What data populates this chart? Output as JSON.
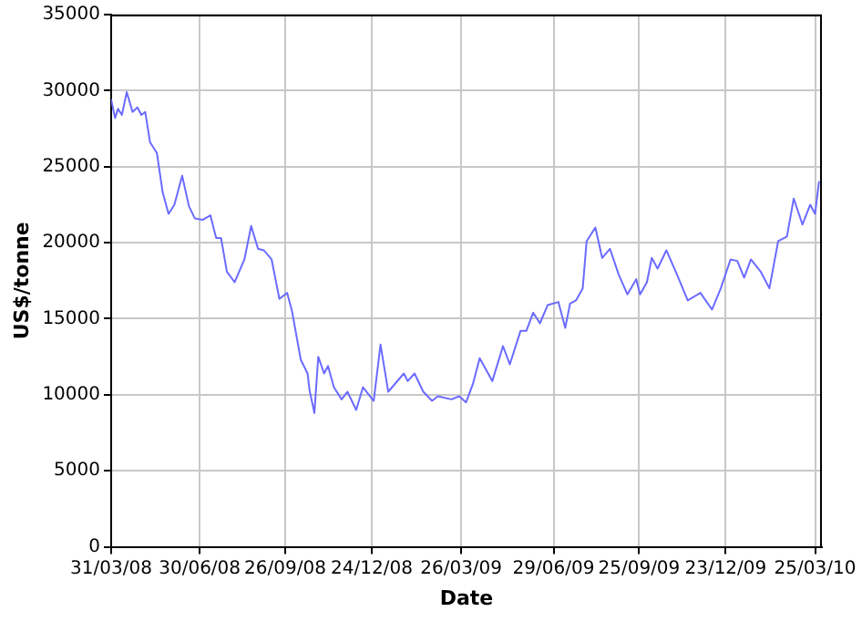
{
  "chart_data": {
    "type": "line",
    "xlabel": "Date",
    "ylabel": "US$/tonne",
    "x": [
      "2008-03-31",
      "2008-04-04",
      "2008-04-07",
      "2008-04-11",
      "2008-04-16",
      "2008-04-22",
      "2008-04-27",
      "2008-05-01",
      "2008-05-05",
      "2008-05-10",
      "2008-05-17",
      "2008-05-23",
      "2008-05-29",
      "2008-06-04",
      "2008-06-12",
      "2008-06-19",
      "2008-06-25",
      "2008-07-03",
      "2008-07-11",
      "2008-07-17",
      "2008-07-22",
      "2008-07-28",
      "2008-08-05",
      "2008-08-15",
      "2008-08-22",
      "2008-08-29",
      "2008-09-04",
      "2008-09-12",
      "2008-09-20",
      "2008-09-28",
      "2008-10-03",
      "2008-10-12",
      "2008-10-19",
      "2008-10-21",
      "2008-10-26",
      "2008-10-30",
      "2008-11-05",
      "2008-11-09",
      "2008-11-15",
      "2008-11-23",
      "2008-11-29",
      "2008-12-08",
      "2008-12-15",
      "2008-12-26",
      "2009-01-02",
      "2009-01-10",
      "2009-01-26",
      "2009-01-30",
      "2009-02-06",
      "2009-02-15",
      "2009-02-24",
      "2009-03-02",
      "2009-03-16",
      "2009-03-24",
      "2009-03-31",
      "2009-04-07",
      "2009-04-14",
      "2009-04-27",
      "2009-05-08",
      "2009-05-15",
      "2009-05-26",
      "2009-06-01",
      "2009-06-08",
      "2009-06-15",
      "2009-06-23",
      "2009-07-04",
      "2009-07-11",
      "2009-07-16",
      "2009-07-22",
      "2009-07-29",
      "2009-08-02",
      "2009-08-11",
      "2009-08-18",
      "2009-08-26",
      "2009-09-04",
      "2009-09-13",
      "2009-09-22",
      "2009-09-26",
      "2009-10-03",
      "2009-10-08",
      "2009-10-14",
      "2009-10-23",
      "2009-11-03",
      "2009-11-14",
      "2009-11-27",
      "2009-12-09",
      "2009-12-18",
      "2009-12-28",
      "2010-01-04",
      "2010-01-11",
      "2010-01-18",
      "2010-01-28",
      "2010-02-06",
      "2010-02-15",
      "2010-02-24",
      "2010-03-03",
      "2010-03-12",
      "2010-03-20",
      "2010-03-25",
      "2010-03-29"
    ],
    "series": [
      {
        "color": "#6b6bff",
        "values": [
          29400,
          28200,
          28800,
          28400,
          29900,
          28600,
          28900,
          28400,
          28600,
          26600,
          25900,
          23300,
          21900,
          22500,
          24400,
          22400,
          21600,
          21500,
          21800,
          20300,
          20300,
          18100,
          17400,
          18900,
          21100,
          19600,
          19500,
          18900,
          16300,
          16700,
          15500,
          12300,
          11400,
          10300,
          8800,
          12500,
          11400,
          11900,
          10500,
          9700,
          10200,
          9000,
          10500,
          9600,
          13300,
          10200,
          11400,
          10900,
          11400,
          10200,
          9600,
          9900,
          9700,
          9900,
          9500,
          10700,
          12400,
          10900,
          13200,
          12000,
          14200,
          14200,
          15400,
          14700,
          15900,
          16100,
          14400,
          16000,
          16200,
          17000,
          20100,
          21000,
          19000,
          19600,
          17900,
          16600,
          17600,
          16600,
          17400,
          19000,
          18300,
          19500,
          17900,
          16200,
          16700,
          15600,
          17000,
          18900,
          18800,
          17700,
          18900,
          18100,
          17000,
          20100,
          20400,
          22900,
          21200,
          22500,
          21900,
          24000
        ]
      }
    ],
    "xlim": [
      "2008-03-31",
      "2010-04-01"
    ],
    "xticks": [
      {
        "value": "2008-03-31",
        "label": "31/03/08"
      },
      {
        "value": "2008-06-30",
        "label": "30/06/08"
      },
      {
        "value": "2008-09-26",
        "label": "26/09/08"
      },
      {
        "value": "2008-12-24",
        "label": "24/12/08"
      },
      {
        "value": "2009-03-26",
        "label": "26/03/09"
      },
      {
        "value": "2009-06-29",
        "label": "29/06/09"
      },
      {
        "value": "2009-09-25",
        "label": "25/09/09"
      },
      {
        "value": "2009-12-23",
        "label": "23/12/09"
      },
      {
        "value": "2010-03-25",
        "label": "25/03/10"
      }
    ],
    "ylim": [
      0,
      35000
    ],
    "yticks": [
      0,
      5000,
      10000,
      15000,
      20000,
      25000,
      30000,
      35000
    ],
    "grid": true,
    "legend": false,
    "marker": "none",
    "line_style": "solid"
  }
}
